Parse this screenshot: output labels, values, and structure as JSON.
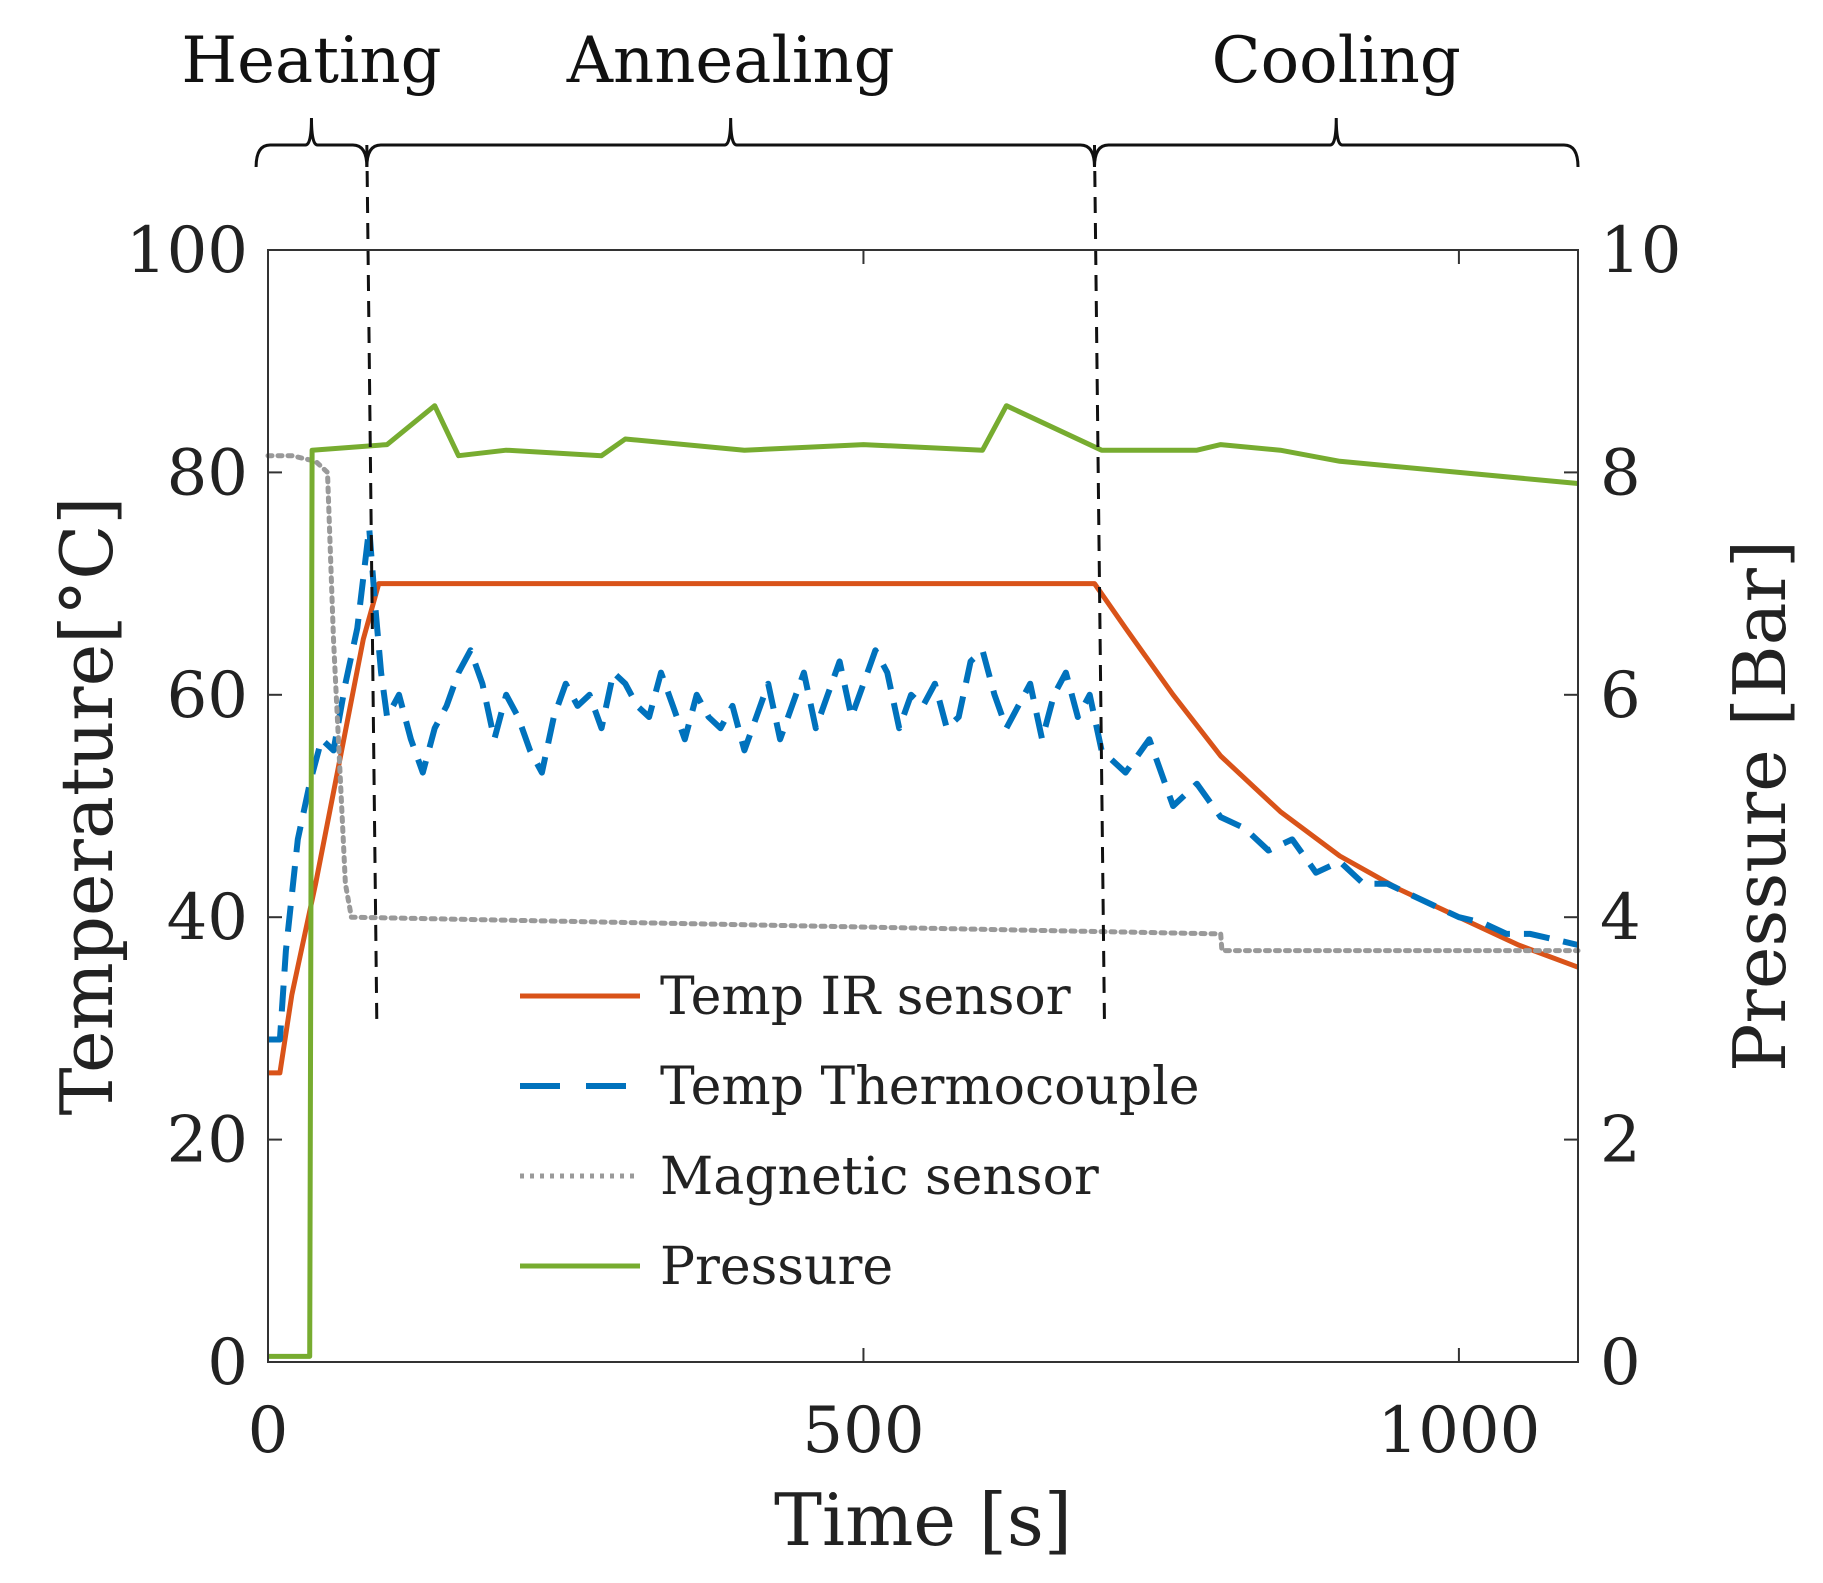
{
  "chart_data": {
    "type": "line",
    "title": "",
    "xlabel": "Time [s]",
    "ylabel_left": "Temperature[°C]",
    "ylabel_right": "Pressure [Bar]",
    "xlim": [
      0,
      1100
    ],
    "ylim_left": [
      0,
      100
    ],
    "ylim_right": [
      0,
      10
    ],
    "x_ticks": [
      0,
      500,
      1000
    ],
    "y_ticks_left": [
      0,
      20,
      40,
      60,
      80,
      100
    ],
    "y_ticks_right": [
      0,
      2,
      4,
      6,
      8,
      10
    ],
    "grid": false,
    "legend_position": "lower-center",
    "phases": [
      {
        "label": "Heating",
        "x_start": -10,
        "x_end": 83
      },
      {
        "label": "Annealing",
        "x_start": 83,
        "x_end": 694
      },
      {
        "label": "Cooling",
        "x_start": 694,
        "x_end": 1100
      }
    ],
    "phase_boundaries": [
      83,
      694
    ],
    "series": [
      {
        "name": "Temp IR sensor",
        "axis": "left",
        "color": "#d95319",
        "style": "solid",
        "x": [
          0,
          10,
          20,
          40,
          60,
          80,
          93,
          200,
          300,
          400,
          500,
          600,
          694,
          720,
          760,
          800,
          850,
          900,
          950,
          1000,
          1050,
          1100
        ],
        "y": [
          26,
          26,
          33,
          43,
          54,
          65,
          70,
          70,
          70,
          70,
          70,
          70,
          70,
          66,
          60,
          54.5,
          49.5,
          45.5,
          42.5,
          40,
          37.5,
          35.5
        ]
      },
      {
        "name": "Temp Thermocouple",
        "axis": "left",
        "color": "#0072bd",
        "style": "dashed",
        "x": [
          0,
          10,
          15,
          25,
          35,
          45,
          55,
          65,
          75,
          85,
          90,
          95,
          100,
          110,
          120,
          130,
          140,
          150,
          160,
          170,
          180,
          190,
          200,
          210,
          220,
          230,
          240,
          250,
          260,
          270,
          280,
          290,
          300,
          310,
          320,
          330,
          340,
          350,
          360,
          370,
          380,
          390,
          400,
          410,
          420,
          430,
          440,
          450,
          460,
          470,
          480,
          490,
          500,
          510,
          520,
          530,
          540,
          550,
          560,
          570,
          580,
          590,
          600,
          610,
          620,
          630,
          640,
          650,
          660,
          670,
          680,
          690,
          700,
          720,
          740,
          760,
          780,
          800,
          820,
          840,
          860,
          880,
          900,
          920,
          940,
          960,
          980,
          1000,
          1020,
          1040,
          1060,
          1080,
          1100
        ],
        "y": [
          29,
          29,
          37,
          47,
          52,
          56,
          55,
          61,
          66,
          75,
          68,
          62,
          58,
          60,
          56,
          53,
          57,
          59,
          62,
          64,
          61,
          56,
          60,
          58,
          55,
          53,
          58,
          61,
          59,
          60,
          57,
          62,
          61,
          59,
          58,
          62,
          59,
          56,
          60,
          58,
          57,
          59,
          55,
          58,
          61,
          56,
          59,
          62,
          57,
          60,
          63,
          58,
          61,
          64,
          62,
          57,
          60,
          59,
          61,
          57,
          58,
          63,
          64,
          60,
          57,
          59,
          61,
          56,
          60,
          62,
          58,
          60,
          55,
          53,
          56,
          50,
          52,
          49,
          48,
          46,
          47,
          44,
          45,
          43,
          43,
          42,
          41,
          40,
          39.5,
          38.5,
          38.5,
          38,
          37.5
        ]
      },
      {
        "name": "Magnetic sensor",
        "axis": "right",
        "color": "#999999",
        "style": "dotted",
        "x": [
          0,
          20,
          40,
          50,
          55,
          60,
          65,
          70,
          800,
          801,
          1100
        ],
        "y": [
          8.15,
          8.15,
          8.1,
          8.0,
          6.5,
          5.4,
          4.3,
          4.0,
          3.85,
          3.7,
          3.7
        ]
      },
      {
        "name": "Pressure",
        "axis": "right",
        "color": "#77ac30",
        "style": "solid",
        "x": [
          0,
          35,
          36,
          37,
          100,
          140,
          160,
          200,
          280,
          300,
          400,
          500,
          600,
          620,
          700,
          780,
          800,
          850,
          900,
          1000,
          1100
        ],
        "y": [
          0.05,
          0.05,
          4.0,
          8.2,
          8.25,
          8.6,
          8.15,
          8.2,
          8.15,
          8.3,
          8.2,
          8.25,
          8.2,
          8.6,
          8.2,
          8.2,
          8.25,
          8.2,
          8.1,
          8.0,
          7.9
        ]
      }
    ]
  }
}
